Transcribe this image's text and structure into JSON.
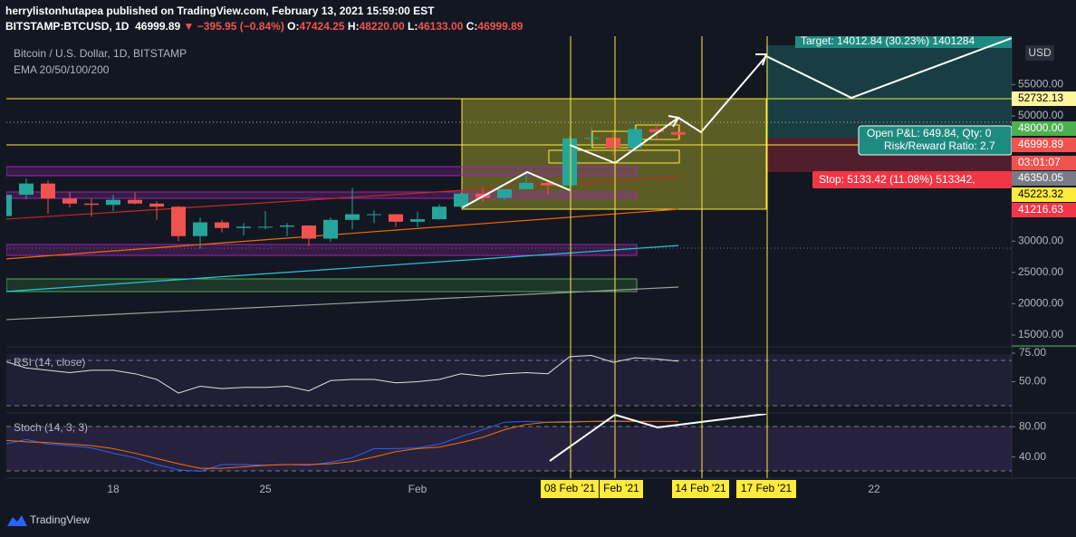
{
  "header": {
    "author_line": "herrylistonhutapea published on TradingView.com, February 13, 2021 15:59:00 EST",
    "symbol": "BITSTAMP:BTCUSD, 1D",
    "last": "46999.89",
    "change": "▼ −395.95 (−0.84%)",
    "ohlc": [
      {
        "key": "O:",
        "value": "47424.25"
      },
      {
        "key": "H:",
        "value": "48220.00"
      },
      {
        "key": "L:",
        "value": "46133.00"
      },
      {
        "key": "C:",
        "value": "46999.89"
      }
    ]
  },
  "chart_data": {
    "type": "candlestick",
    "title": "Bitcoin / U.S. Dollar, 1D, BITSTAMP",
    "subtitle": "EMA 20/50/100/200",
    "up_color": "#26a69a",
    "down_color": "#ef5350",
    "open": [
      34000,
      37400,
      39200,
      36800,
      36000,
      35800,
      36600,
      36000,
      35500,
      30800,
      33000,
      32100,
      32300,
      32300,
      32500,
      30400,
      33400,
      34300,
      34300,
      33100,
      33500,
      35500,
      37600,
      36900,
      38300,
      39300,
      38900,
      46400,
      46500,
      44900,
      47900,
      47424.25
    ],
    "high": [
      37600,
      40000,
      39700,
      37900,
      36800,
      37400,
      37800,
      36400,
      35600,
      33800,
      33400,
      32900,
      34800,
      32900,
      32500,
      33800,
      38500,
      34900,
      34300,
      34700,
      35900,
      37700,
      38600,
      38300,
      40900,
      39700,
      46800,
      48200,
      47300,
      48600,
      48900,
      48220
    ],
    "low": [
      32400,
      36700,
      34400,
      35400,
      33900,
      34800,
      35900,
      33400,
      30000,
      28800,
      31400,
      30900,
      31900,
      30800,
      29200,
      29900,
      31900,
      32900,
      32300,
      32300,
      33400,
      35400,
      36200,
      36600,
      38200,
      37400,
      37900,
      45000,
      43800,
      44100,
      46300,
      46133
    ],
    "close": [
      37400,
      39200,
      36800,
      36000,
      35800,
      36600,
      36000,
      35500,
      30800,
      33000,
      32100,
      32300,
      32300,
      32500,
      30400,
      33400,
      34300,
      34300,
      33100,
      33500,
      35500,
      37600,
      36900,
      38300,
      39300,
      38900,
      46400,
      46500,
      44900,
      47900,
      47400,
      46999.89
    ],
    "ema_lines": [
      {
        "color": "#c62828",
        "values": [
          33500,
          40300
        ]
      },
      {
        "color": "#ef6c00",
        "values": [
          27150,
          35100
        ]
      },
      {
        "color": "#26c6da",
        "values": [
          21940,
          29300
        ]
      },
      {
        "color": "#9e9e9e",
        "values": [
          17450,
          22660
        ]
      }
    ],
    "ylim": [
      13263,
      62728
    ],
    "yticks": [
      {
        "value": 55000,
        "label": "55000.00"
      },
      {
        "value": 50000,
        "label": "50000.00"
      },
      {
        "value": 30000,
        "label": "30000.00"
      },
      {
        "value": 25000,
        "label": "25000.00"
      },
      {
        "value": 20000,
        "label": "20000.00"
      },
      {
        "value": 15000,
        "label": "15000.00"
      }
    ],
    "currency": "USD",
    "price_labels": [
      {
        "label": "52732.13",
        "bg": "#fff59d",
        "fg": "#000"
      },
      {
        "label": "48000.00",
        "bg": "#4caf50",
        "fg": "#fff"
      },
      {
        "label": "46999.89",
        "bg": "#ef5350",
        "fg": "#fff"
      },
      {
        "label": "03:01:07",
        "bg": "#ef5350",
        "fg": "#fff"
      },
      {
        "label": "46350.05",
        "bg": "#787b86",
        "fg": "#fff"
      },
      {
        "label": "45223.32",
        "bg": "#ffeb3b",
        "fg": "#000"
      },
      {
        "label": "41216.63",
        "bg": "#f23645",
        "fg": "#fff"
      }
    ],
    "target": "Target: 14012.84 (30.23%) 1401284",
    "pnl": "Open P&L: 649.84, Qty: 0",
    "risk_reward": "Risk/Reward Ratio: 2.7",
    "stop": "Stop: 5133.42 (11.08%) 513342, ",
    "x_labels": [
      "18",
      "25",
      "Feb",
      "22"
    ],
    "x_marker_labels": [
      "08 Feb '21",
      "Feb '21",
      "14 Feb '21",
      "17 Feb '21"
    ],
    "rsi": {
      "title": "RSI (14, close)",
      "color": "#e0e0e0",
      "values": [
        68,
        62,
        60,
        58,
        60,
        60,
        57,
        52,
        40,
        46,
        44,
        45,
        45,
        46,
        42,
        51,
        52,
        52,
        49,
        50,
        52,
        57,
        55,
        57,
        58,
        57,
        72,
        73,
        67,
        71,
        70,
        68
      ],
      "ylim": [
        23.4,
        79.8
      ],
      "yticks": [
        {
          "value": 75,
          "label": "75.00"
        },
        {
          "value": 50,
          "label": "50.00"
        }
      ]
    },
    "stoch": {
      "title": "Stoch (14, 3, 3)",
      "ylim": [
        12,
        97
      ],
      "yticks": [
        {
          "value": 80,
          "label": "80.00"
        },
        {
          "value": 40,
          "label": "40.00"
        }
      ],
      "series": [
        {
          "color": "#2962ff",
          "values": [
            57,
            63,
            57,
            55,
            52,
            45,
            39,
            30,
            23,
            21,
            30,
            30,
            29,
            30,
            29,
            33,
            39,
            51,
            51,
            52,
            57,
            67,
            76,
            86,
            87,
            86,
            87,
            87,
            88,
            87,
            87,
            87
          ]
        },
        {
          "color": "#ff6d00",
          "values": [
            62,
            60,
            59,
            57,
            55,
            51,
            45,
            38,
            31,
            25,
            25,
            27,
            29,
            30,
            30,
            31,
            34,
            40,
            47,
            51,
            53,
            59,
            66,
            76,
            83,
            86,
            86,
            87,
            87,
            87,
            87,
            87
          ]
        }
      ]
    }
  },
  "footer": "TradingView"
}
